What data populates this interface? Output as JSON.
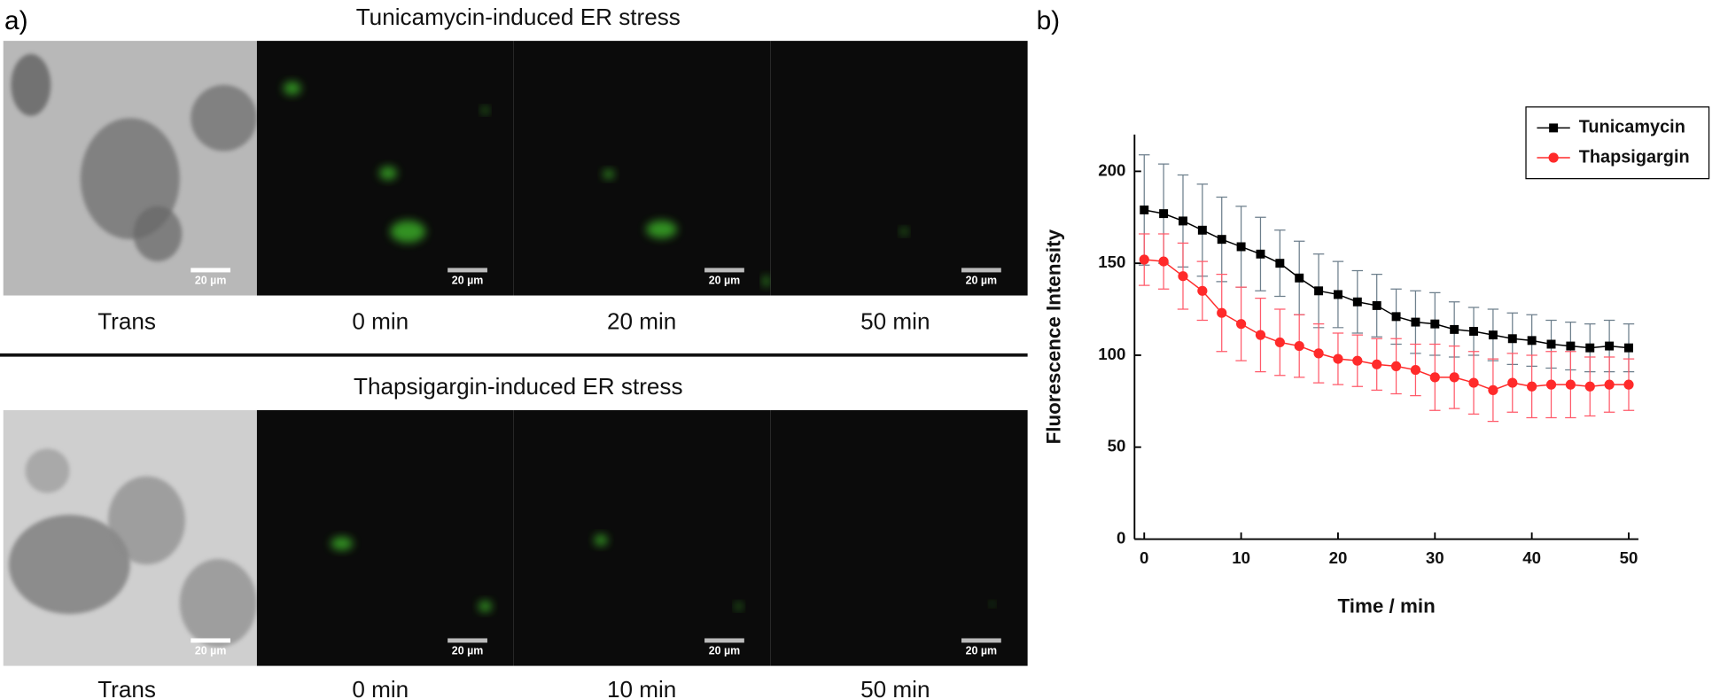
{
  "panel_a": {
    "label": "a)",
    "rows": [
      {
        "title": "Tunicamycin-induced ER stress",
        "captions": [
          "Trans",
          "0 min",
          "20 min",
          "50 min"
        ],
        "scale_bar": "20 µm"
      },
      {
        "title": "Thapsigargin-induced ER stress",
        "captions": [
          "Trans",
          "0 min",
          "10 min",
          "50 min"
        ],
        "scale_bar": "20 µm"
      }
    ]
  },
  "chart_data": {
    "type": "line",
    "panel_label": "b)",
    "xlabel": "Time / min",
    "ylabel": "Fluorescence Intensity",
    "x": [
      0,
      2,
      4,
      6,
      8,
      10,
      12,
      14,
      16,
      18,
      20,
      22,
      24,
      26,
      28,
      30,
      32,
      34,
      36,
      38,
      40,
      42,
      44,
      46,
      48,
      50
    ],
    "series": [
      {
        "name": "Tunicamycin",
        "color": "#000000",
        "marker": "square",
        "values": [
          179,
          177,
          173,
          168,
          163,
          159,
          155,
          150,
          142,
          135,
          133,
          129,
          127,
          121,
          118,
          117,
          114,
          113,
          111,
          109,
          108,
          106,
          105,
          104,
          105,
          104
        ],
        "errors": [
          30,
          27,
          25,
          25,
          23,
          22,
          20,
          18,
          20,
          20,
          18,
          17,
          17,
          15,
          17,
          17,
          15,
          13,
          14,
          14,
          14,
          13,
          13,
          13,
          14,
          13
        ]
      },
      {
        "name": "Thapsigargin",
        "color": "#ff2a2a",
        "marker": "circle",
        "values": [
          152,
          151,
          143,
          135,
          123,
          117,
          111,
          107,
          105,
          101,
          98,
          97,
          95,
          94,
          92,
          88,
          88,
          85,
          81,
          85,
          83,
          84,
          84,
          83,
          84,
          84
        ],
        "errors": [
          14,
          15,
          18,
          16,
          21,
          20,
          20,
          18,
          17,
          16,
          14,
          14,
          14,
          15,
          14,
          18,
          17,
          17,
          17,
          16,
          17,
          18,
          18,
          16,
          15,
          14
        ]
      }
    ],
    "xlim": [
      -1,
      51
    ],
    "ylim": [
      0,
      220
    ],
    "xticks": [
      0,
      10,
      20,
      30,
      40,
      50
    ],
    "yticks": [
      0,
      50,
      100,
      150,
      200
    ],
    "legend": "upper right"
  }
}
